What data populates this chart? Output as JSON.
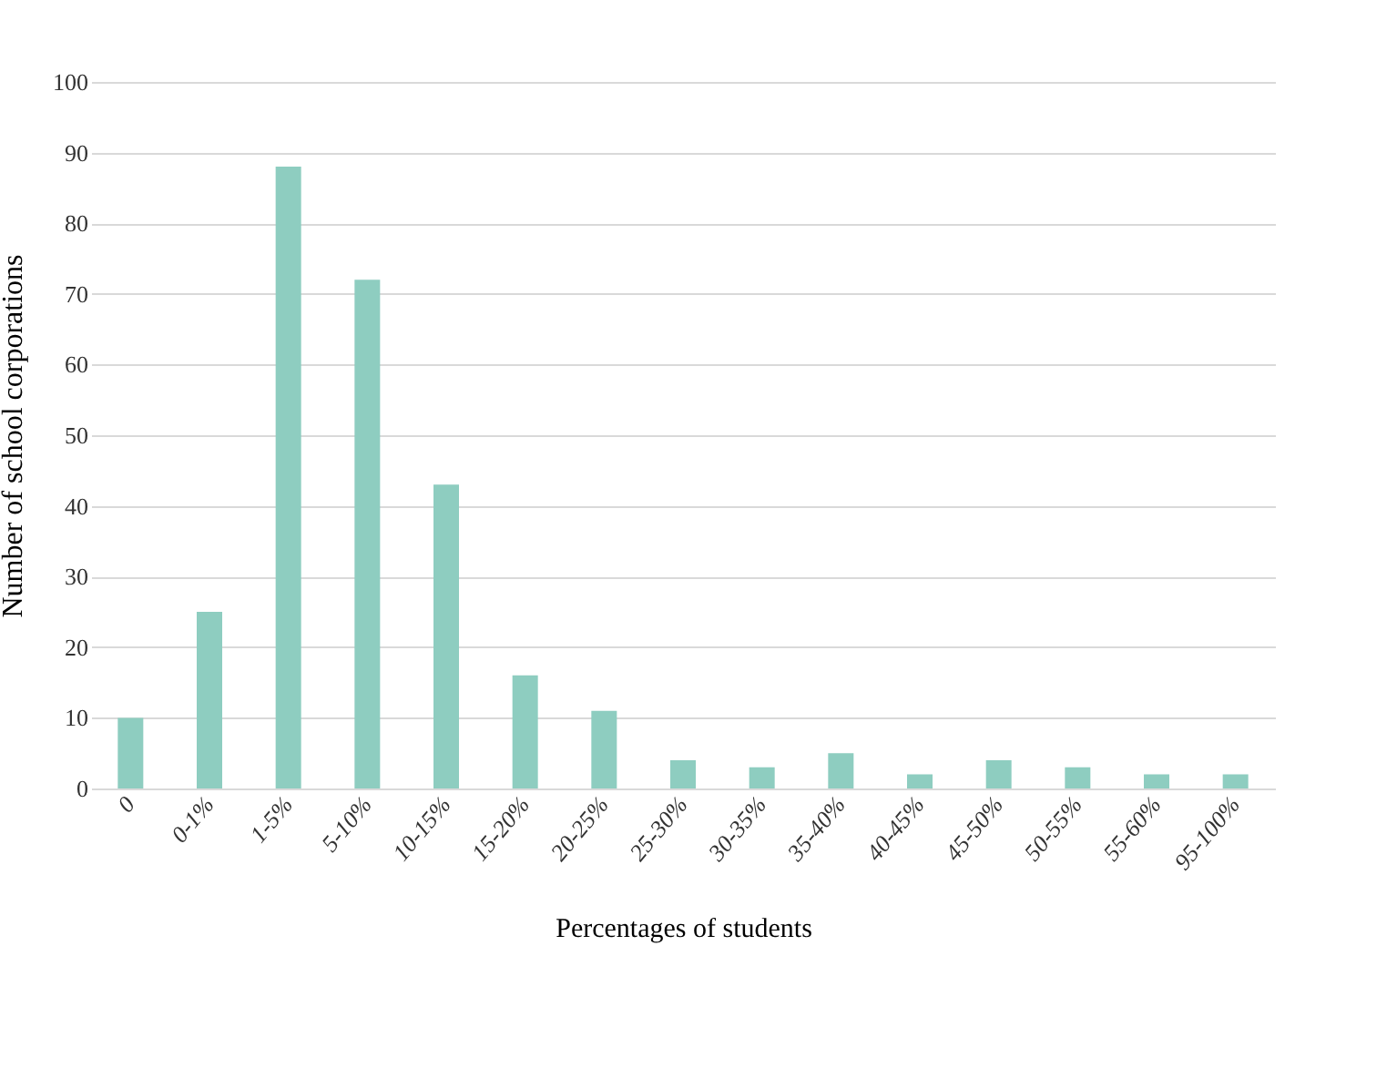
{
  "chart_data": {
    "type": "bar",
    "xlabel": "Percentages of students",
    "ylabel": "Number of school corporations",
    "categories": [
      "0",
      "0-1%",
      "1-5%",
      "5-10%",
      "10-15%",
      "15-20%",
      "20-25%",
      "25-30%",
      "30-35%",
      "35-40%",
      "40-45%",
      "45-50%",
      "50-55%",
      "55-60%",
      "95-100%"
    ],
    "values": [
      10,
      25,
      88,
      72,
      43,
      16,
      11,
      4,
      3,
      5,
      2,
      4,
      3,
      2,
      2
    ],
    "color": "#8ecdc0",
    "ylim": [
      0,
      100
    ],
    "yticks": [
      0,
      10,
      20,
      30,
      40,
      50,
      60,
      70,
      80,
      90,
      100
    ],
    "grid": "y"
  }
}
